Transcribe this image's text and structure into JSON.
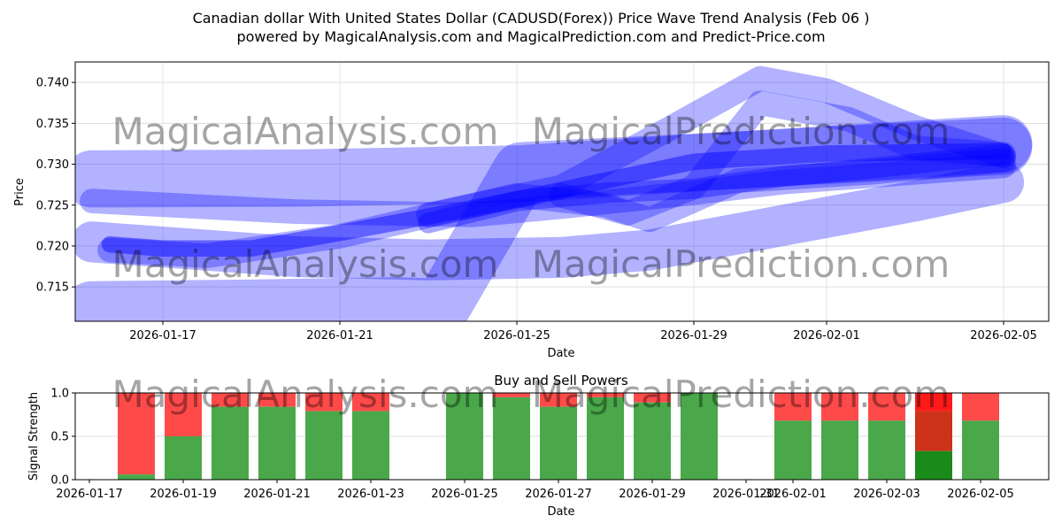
{
  "title_line1": "Canadian dollar With United States Dollar (CADUSD(Forex)) Price Wave Trend Analysis (Feb 06 )",
  "title_line2": "powered by MagicalAnalysis.com and MagicalPrediction.com and Predict-Price.com",
  "watermarks": [
    "MagicalAnalysis.com",
    "MagicalPrediction.com"
  ],
  "chart_data": [
    {
      "type": "area",
      "title": "",
      "xlabel": "Date",
      "ylabel": "Price",
      "x_start": "2026-01-15",
      "xlim_days": [
        0.02,
        22.02
      ],
      "ylim": [
        0.7108,
        0.7425
      ],
      "yticks": [
        0.715,
        0.72,
        0.725,
        0.73,
        0.735,
        0.74
      ],
      "ytick_labels": [
        "0.715",
        "0.720",
        "0.725",
        "0.730",
        "0.735",
        "0.740"
      ],
      "xticks_days": [
        2,
        6,
        10,
        14,
        17,
        21
      ],
      "xtick_labels": [
        "2026-01-17",
        "2026-01-21",
        "2026-01-25",
        "2026-01-29",
        "2026-02-01",
        "2026-02-05"
      ],
      "grid": true,
      "color": "#0000ff",
      "bands": [
        {
          "width": 0.007,
          "opacity": 0.3,
          "points": [
            [
              0.4,
              0.7282
            ],
            [
              5,
              0.7283
            ],
            [
              10,
              0.7288
            ],
            [
              15,
              0.7305
            ],
            [
              21,
              0.7322
            ]
          ]
        },
        {
          "width": 0.007,
          "opacity": 0.3,
          "points": [
            [
              0.4,
              0.7122
            ],
            [
              4,
              0.7124
            ],
            [
              7.3,
              0.7127
            ],
            [
              8.3,
              0.7125
            ],
            [
              10.1,
              0.7292
            ],
            [
              15,
              0.7305
            ],
            [
              21,
              0.7325
            ]
          ]
        },
        {
          "width": 0.005,
          "opacity": 0.3,
          "points": [
            [
              0.4,
              0.7205
            ],
            [
              5,
              0.7187
            ],
            [
              8,
              0.7183
            ],
            [
              11,
              0.7186
            ],
            [
              13,
              0.7195
            ],
            [
              15,
              0.7215
            ],
            [
              17,
              0.7235
            ],
            [
              19,
              0.7255
            ],
            [
              21,
              0.7278
            ]
          ]
        },
        {
          "width": 0.003,
          "opacity": 0.3,
          "points": [
            [
              0.4,
              0.7255
            ],
            [
              5,
              0.7242
            ],
            [
              9,
              0.7238
            ],
            [
              11,
              0.7248
            ],
            [
              14,
              0.7265
            ],
            [
              16,
              0.7278
            ],
            [
              21,
              0.7298
            ]
          ]
        },
        {
          "width": 0.003,
          "opacity": 0.3,
          "points": [
            [
              8,
              0.7238
            ],
            [
              11,
              0.7272
            ],
            [
              13.5,
              0.7345
            ],
            [
              15.5,
              0.7405
            ],
            [
              17,
              0.739
            ],
            [
              19,
              0.7345
            ],
            [
              21,
              0.731
            ]
          ]
        },
        {
          "width": 0.003,
          "opacity": 0.3,
          "points": [
            [
              11,
              0.7262
            ],
            [
              12.5,
              0.724
            ],
            [
              14,
              0.7272
            ],
            [
              15.5,
              0.7375
            ],
            [
              17.5,
              0.7355
            ],
            [
              19,
              0.732
            ],
            [
              21,
              0.7312
            ]
          ]
        },
        {
          "width": 0.003,
          "opacity": 0.3,
          "points": [
            [
              0.8,
              0.7195
            ],
            [
              3,
              0.7188
            ],
            [
              6,
              0.7212
            ],
            [
              10,
              0.7262
            ],
            [
              12,
              0.725
            ],
            [
              13,
              0.7232
            ],
            [
              15,
              0.728
            ],
            [
              18,
              0.729
            ],
            [
              21,
              0.7305
            ]
          ]
        },
        {
          "width": 0.002,
          "opacity": 0.45,
          "points": [
            [
              0.8,
              0.7202
            ],
            [
              2,
              0.7197
            ],
            [
              4,
              0.7197
            ],
            [
              6,
              0.7216
            ],
            [
              8,
              0.7236
            ],
            [
              10,
              0.7257
            ],
            [
              12,
              0.728
            ],
            [
              14,
              0.7303
            ],
            [
              17,
              0.7313
            ],
            [
              21,
              0.7316
            ]
          ]
        },
        {
          "width": 0.0025,
          "opacity": 0.35,
          "points": [
            [
              8,
              0.7228
            ],
            [
              10,
              0.7255
            ],
            [
              12,
              0.7265
            ],
            [
              14,
              0.727
            ],
            [
              16,
              0.7285
            ],
            [
              18,
              0.7295
            ],
            [
              21,
              0.7312
            ]
          ]
        }
      ]
    },
    {
      "type": "bar",
      "title": "Buy and Sell Powers",
      "xlabel": "Date",
      "ylabel": "Signal Strength",
      "ylim": [
        0,
        1
      ],
      "yticks": [
        0,
        0.5,
        1
      ],
      "ytick_labels": [
        "0.0",
        "0.5",
        "1.0"
      ],
      "xtick_labels": [
        "2026-01-17",
        "2026-01-19",
        "2026-01-21",
        "2026-01-23",
        "2026-01-25",
        "2026-01-27",
        "2026-01-29",
        "2026-01-31",
        "2026-02-01",
        "2026-02-03",
        "2026-02-05"
      ],
      "xticks_days": [
        2,
        4,
        6,
        8,
        10,
        12,
        14,
        16,
        17,
        19,
        21
      ],
      "buy_color": "#4aa84a",
      "sell_color": "#ff4a4a",
      "bars": [
        {
          "day": 3,
          "buy": 0.06
        },
        {
          "day": 4,
          "buy": 0.5
        },
        {
          "day": 5,
          "buy": 0.84
        },
        {
          "day": 6,
          "buy": 0.84
        },
        {
          "day": 7,
          "buy": 0.79
        },
        {
          "day": 8,
          "buy": 0.79
        },
        {
          "day": 10,
          "buy": 1.0
        },
        {
          "day": 11,
          "buy": 0.95
        },
        {
          "day": 12,
          "buy": 0.84
        },
        {
          "day": 13,
          "buy": 0.95
        },
        {
          "day": 14,
          "buy": 0.89
        },
        {
          "day": 15,
          "buy": 1.0
        },
        {
          "day": 17,
          "buy": 0.68
        },
        {
          "day": 18,
          "buy": 0.68
        },
        {
          "day": 19,
          "buy": 0.68
        },
        {
          "day": 20,
          "buy": 0.33,
          "mid": 0.79,
          "highlight": true
        },
        {
          "day": 21,
          "buy": 0.68
        }
      ]
    }
  ]
}
